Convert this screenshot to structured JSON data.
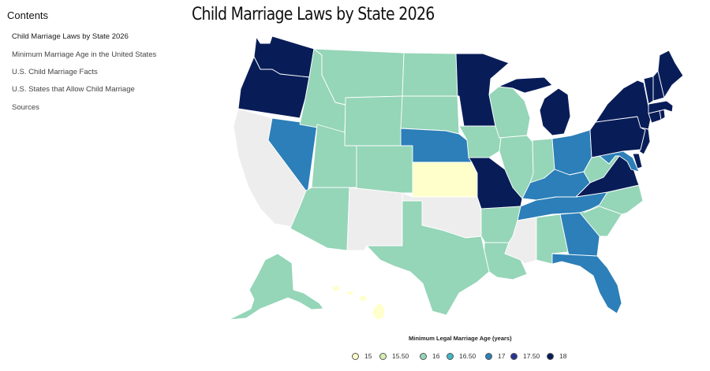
{
  "sidebar": {
    "title": "Contents",
    "items": [
      {
        "label": "Child Marriage Laws by State 2026",
        "active": true
      },
      {
        "label": "Minimum Marriage Age in the United States",
        "active": false
      },
      {
        "label": "U.S. Child Marriage Facts",
        "active": false
      },
      {
        "label": "U.S. States that Allow Child Marriage",
        "active": false
      },
      {
        "label": "Sources",
        "active": false
      }
    ]
  },
  "page": {
    "title": "Child Marriage Laws by State 2026"
  },
  "legend": {
    "title": "Minimum Legal Marriage Age (years)",
    "items": [
      {
        "label": "15",
        "color": "#ffffcc"
      },
      {
        "label": "15.50",
        "color": "#d5efb3"
      },
      {
        "label": "16",
        "color": "#95d5b8"
      },
      {
        "label": "16.50",
        "color": "#41b6c4"
      },
      {
        "label": "17",
        "color": "#2c7fb8"
      },
      {
        "label": "17.50",
        "color": "#253494"
      },
      {
        "label": "18",
        "color": "#081d58"
      }
    ]
  },
  "map_data": {
    "no_data_color": "#ededed",
    "states": {
      "WA": 18,
      "OR": 18,
      "CA": null,
      "NV": 17,
      "ID": 16,
      "MT": 16,
      "WY": 16,
      "UT": 16,
      "AZ": 16,
      "CO": 16,
      "NM": null,
      "ND": 16,
      "SD": 16,
      "NE": 17,
      "KS": 15,
      "OK": null,
      "TX": 16,
      "MN": 18,
      "IA": 16,
      "MO": 18,
      "AR": 16,
      "LA": 16,
      "WI": 16,
      "IL": 16,
      "MI": 18,
      "IN": 16,
      "OH": 17,
      "KY": 17,
      "TN": 17,
      "MS": null,
      "AL": 16,
      "GA": 17,
      "FL": 17,
      "SC": 16,
      "NC": 16,
      "VA": 18,
      "WV": 16,
      "MD": 17,
      "DE": 18,
      "PA": 18,
      "NJ": 18,
      "NY": 18,
      "CT": 18,
      "RI": 18,
      "MA": 18,
      "VT": 18,
      "NH": 18,
      "ME": 18,
      "AK": 16,
      "HI": 15
    }
  }
}
